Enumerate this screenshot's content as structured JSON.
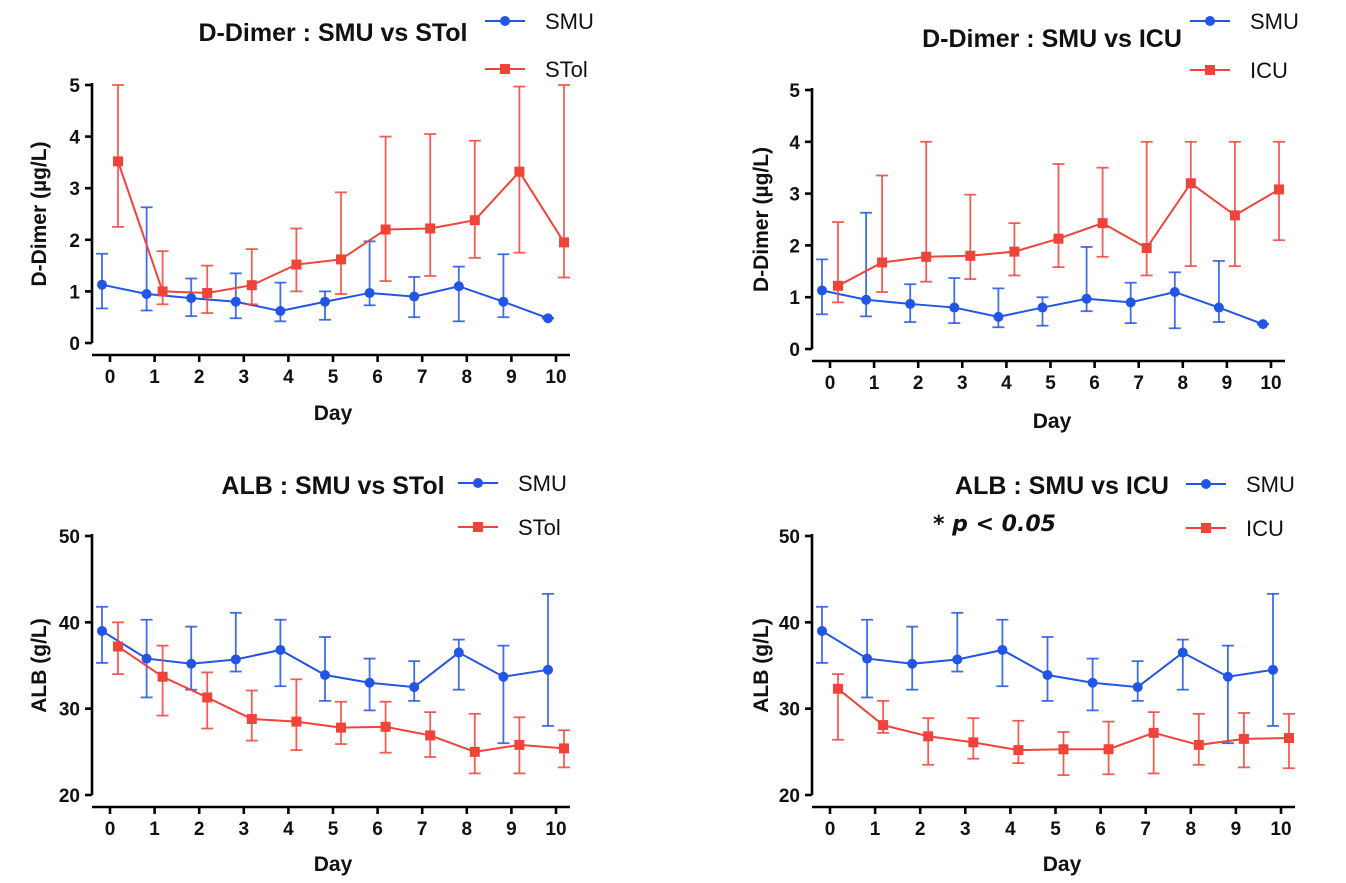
{
  "colors": {
    "smu": "#2255e6",
    "compare": "#f0443a"
  },
  "chart_data": [
    {
      "type": "line",
      "title": "D-Dimer : SMU vs STol",
      "xlabel": "Day",
      "ylabel": "D-Dimer (µg/L)",
      "ylim": [
        0,
        5
      ],
      "yticks": [
        0,
        1,
        2,
        3,
        4,
        5
      ],
      "xticks": [
        0,
        1,
        2,
        3,
        4,
        5,
        6,
        7,
        8,
        9,
        10
      ],
      "legend": "top-right",
      "series": [
        {
          "name": "SMU",
          "color": "#2255e6",
          "marker": "circle",
          "x": [
            0,
            1,
            2,
            3,
            4,
            5,
            6,
            7,
            8,
            9,
            10
          ],
          "y": [
            1.13,
            0.95,
            0.87,
            0.8,
            0.62,
            0.8,
            0.97,
            0.9,
            1.1,
            0.8,
            0.48
          ],
          "err_low": [
            0.67,
            0.63,
            0.52,
            0.48,
            0.42,
            0.45,
            0.73,
            0.5,
            0.42,
            0.5,
            0.48
          ],
          "err_high": [
            1.73,
            2.63,
            1.25,
            1.35,
            1.17,
            1.0,
            1.97,
            1.28,
            1.48,
            1.72,
            0.48
          ]
        },
        {
          "name": "STol",
          "color": "#f0443a",
          "marker": "square",
          "x": [
            0,
            1,
            2,
            3,
            4,
            5,
            6,
            7,
            8,
            9,
            10
          ],
          "y": [
            3.52,
            1.0,
            0.97,
            1.12,
            1.52,
            1.62,
            2.2,
            2.22,
            2.38,
            3.32,
            1.95
          ],
          "err_low": [
            2.25,
            0.75,
            0.58,
            0.75,
            1.0,
            0.95,
            1.2,
            1.3,
            1.65,
            1.75,
            1.27
          ],
          "err_high": [
            5.0,
            1.78,
            1.5,
            1.82,
            2.22,
            2.92,
            4.0,
            4.05,
            3.92,
            4.97,
            5.0
          ]
        }
      ]
    },
    {
      "type": "line",
      "title": "D-Dimer : SMU vs ICU",
      "xlabel": "Day",
      "ylabel": "D-Dimer (µg/L)",
      "ylim": [
        0,
        5
      ],
      "yticks": [
        0,
        1,
        2,
        3,
        4,
        5
      ],
      "xticks": [
        0,
        1,
        2,
        3,
        4,
        5,
        6,
        7,
        8,
        9,
        10
      ],
      "legend": "top-right",
      "series": [
        {
          "name": "SMU",
          "color": "#2255e6",
          "marker": "circle",
          "x": [
            0,
            1,
            2,
            3,
            4,
            5,
            6,
            7,
            8,
            9,
            10
          ],
          "y": [
            1.13,
            0.95,
            0.87,
            0.8,
            0.62,
            0.8,
            0.97,
            0.9,
            1.1,
            0.8,
            0.48
          ],
          "err_low": [
            0.67,
            0.63,
            0.52,
            0.5,
            0.42,
            0.45,
            0.73,
            0.5,
            0.4,
            0.52,
            0.48
          ],
          "err_high": [
            1.73,
            2.63,
            1.25,
            1.37,
            1.17,
            1.0,
            1.97,
            1.28,
            1.48,
            1.7,
            0.48
          ]
        },
        {
          "name": "ICU",
          "color": "#f0443a",
          "marker": "square",
          "x": [
            0,
            1,
            2,
            3,
            4,
            5,
            6,
            7,
            8,
            9,
            10
          ],
          "y": [
            1.22,
            1.67,
            1.78,
            1.8,
            1.88,
            2.13,
            2.43,
            1.95,
            3.2,
            2.58,
            3.08
          ],
          "err_low": [
            0.9,
            1.1,
            1.3,
            1.35,
            1.42,
            1.58,
            1.78,
            1.42,
            1.6,
            1.6,
            2.1
          ],
          "err_high": [
            2.45,
            3.35,
            4.0,
            2.98,
            2.43,
            3.57,
            3.5,
            4.0,
            4.0,
            4.0,
            4.0
          ]
        }
      ]
    },
    {
      "type": "line",
      "title": "ALB : SMU  vs STol",
      "xlabel": "Day",
      "ylabel": "ALB (g/L)",
      "ylim": [
        20,
        50
      ],
      "yticks": [
        20,
        30,
        40,
        50
      ],
      "xticks": [
        0,
        1,
        2,
        3,
        4,
        5,
        6,
        7,
        8,
        9,
        10
      ],
      "legend": "top-right",
      "series": [
        {
          "name": "SMU",
          "color": "#2255e6",
          "marker": "circle",
          "x": [
            0,
            1,
            2,
            3,
            4,
            5,
            6,
            7,
            8,
            9,
            10
          ],
          "y": [
            39.0,
            35.8,
            35.2,
            35.7,
            36.8,
            33.9,
            33.0,
            32.5,
            36.5,
            33.7,
            34.5
          ],
          "err_low": [
            35.3,
            31.3,
            32.2,
            34.3,
            32.6,
            30.9,
            29.8,
            30.9,
            32.2,
            26.0,
            28.0
          ],
          "err_high": [
            41.8,
            40.3,
            39.5,
            41.1,
            40.3,
            38.3,
            35.8,
            35.5,
            38.0,
            37.3,
            43.3
          ]
        },
        {
          "name": "STol",
          "color": "#f0443a",
          "marker": "square",
          "x": [
            0,
            1,
            2,
            3,
            4,
            5,
            6,
            7,
            8,
            9,
            10
          ],
          "y": [
            37.2,
            33.7,
            31.3,
            28.8,
            28.5,
            27.8,
            27.9,
            26.9,
            25.0,
            25.8,
            25.4
          ],
          "err_low": [
            34.0,
            29.2,
            27.7,
            26.3,
            25.2,
            25.9,
            24.9,
            24.4,
            22.5,
            22.5,
            23.2
          ],
          "err_high": [
            40.0,
            37.3,
            34.2,
            32.1,
            33.4,
            30.8,
            30.8,
            29.6,
            29.4,
            29.0,
            27.5
          ]
        }
      ]
    },
    {
      "type": "line",
      "title": "ALB : SMU vs ICU",
      "annotation": "* p < 0.05",
      "xlabel": "Day",
      "ylabel": "ALB (g/L)",
      "ylim": [
        20,
        50
      ],
      "yticks": [
        20,
        30,
        40,
        50
      ],
      "xticks": [
        0,
        1,
        2,
        3,
        4,
        5,
        6,
        7,
        8,
        9,
        10
      ],
      "legend": "top-right",
      "series": [
        {
          "name": "SMU",
          "color": "#2255e6",
          "marker": "circle",
          "x": [
            0,
            1,
            2,
            3,
            4,
            5,
            6,
            7,
            8,
            9,
            10
          ],
          "y": [
            39.0,
            35.8,
            35.2,
            35.7,
            36.8,
            33.9,
            33.0,
            32.5,
            36.5,
            33.7,
            34.5
          ],
          "err_low": [
            35.3,
            31.3,
            32.2,
            34.3,
            32.6,
            30.9,
            29.8,
            30.9,
            32.2,
            26.0,
            28.0
          ],
          "err_high": [
            41.8,
            40.3,
            39.5,
            41.1,
            40.3,
            38.3,
            35.8,
            35.5,
            38.0,
            37.3,
            43.3
          ]
        },
        {
          "name": "ICU",
          "color": "#f0443a",
          "marker": "square",
          "x": [
            0,
            1,
            2,
            3,
            4,
            5,
            6,
            7,
            8,
            9,
            10
          ],
          "y": [
            32.3,
            28.1,
            26.8,
            26.1,
            25.2,
            25.3,
            25.3,
            27.2,
            25.8,
            26.5,
            26.6
          ],
          "err_low": [
            26.4,
            27.2,
            23.5,
            24.2,
            23.7,
            22.3,
            22.4,
            22.5,
            23.5,
            23.2,
            23.1
          ],
          "err_high": [
            34.0,
            30.9,
            28.9,
            28.9,
            28.6,
            27.3,
            28.5,
            29.6,
            29.4,
            29.5,
            29.4
          ]
        }
      ]
    }
  ]
}
